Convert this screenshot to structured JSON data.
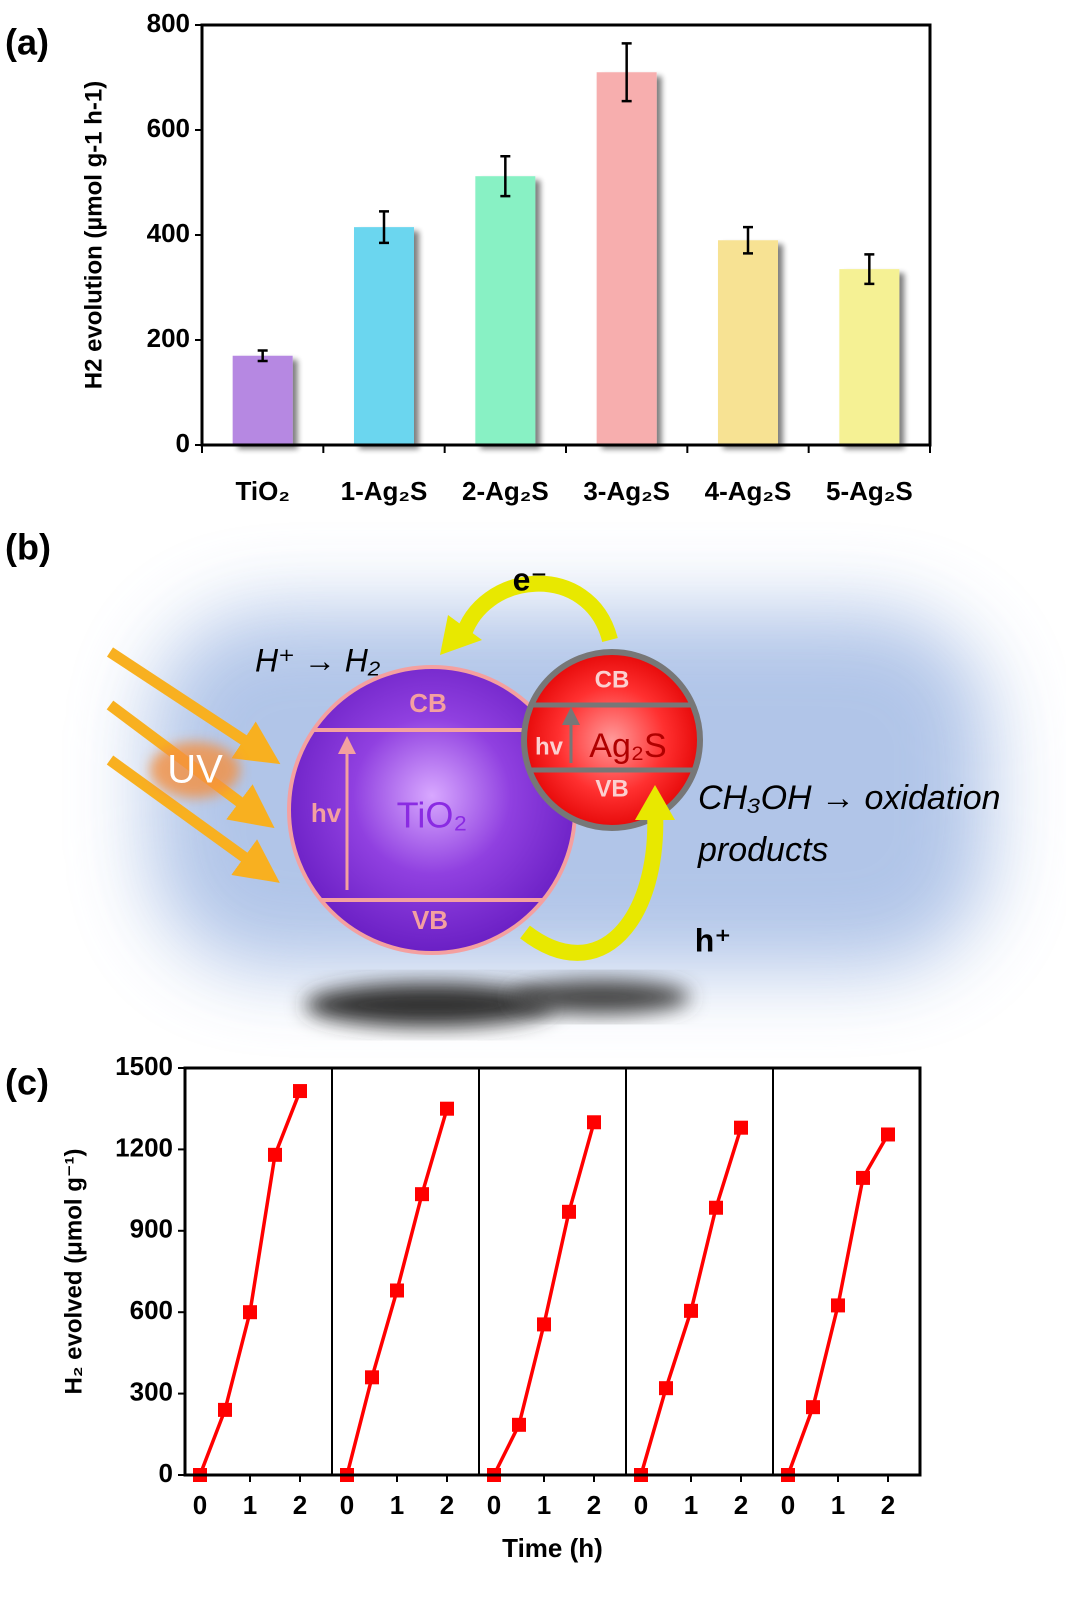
{
  "chart_data": [
    {
      "type": "bar",
      "label": "(a)",
      "y_label": "H2 evolution (µmol g-1 h-1)",
      "categories": [
        "TiO₂",
        "1-Ag₂S",
        "2-Ag₂S",
        "3-Ag₂S",
        "4-Ag₂S",
        "5-Ag₂S"
      ],
      "values": [
        170,
        415,
        512,
        710,
        390,
        335
      ],
      "errors": [
        10,
        30,
        38,
        55,
        25,
        28
      ],
      "colors": [
        "#b07ee0",
        "#5fd3ee",
        "#7ef0c0",
        "#f7a8a8",
        "#f7e08a",
        "#f5f08c"
      ],
      "ylim": [
        0,
        800
      ],
      "yticks": [
        0,
        200,
        400,
        600,
        800
      ],
      "grid": false
    },
    {
      "type": "line",
      "label": "(c)",
      "x_label": "Time (h)",
      "y_label": "H₂ evolved (μmol g⁻¹)",
      "x": [
        0,
        0.5,
        1,
        1.5,
        2
      ],
      "series": [
        {
          "color": "#ff0000",
          "values": [
            0,
            240,
            600,
            1180,
            1415
          ]
        },
        {
          "color": "#ff0000",
          "values": [
            0,
            360,
            680,
            1035,
            1350
          ]
        },
        {
          "color": "#ff0000",
          "values": [
            0,
            185,
            555,
            970,
            1300
          ]
        },
        {
          "color": "#ff0000",
          "values": [
            0,
            320,
            605,
            985,
            1280
          ]
        },
        {
          "color": "#ff0000",
          "values": [
            0,
            250,
            625,
            1095,
            1255
          ]
        }
      ],
      "xlim": [
        -0.3,
        2.64
      ],
      "xticks": [
        0,
        1,
        2
      ],
      "ylim": [
        0,
        1500
      ],
      "yticks": [
        0,
        300,
        600,
        900,
        1200,
        1500
      ],
      "facet": true,
      "grid": false
    }
  ],
  "diagram": {
    "label": "(b)",
    "electron": "e⁻",
    "hole": "h⁺",
    "reduction": "H⁺ → H₂",
    "light": "UV",
    "tio2": {
      "name": "TiO₂",
      "cb": "CB",
      "vb": "VB",
      "excitation": "hv"
    },
    "ag2s": {
      "name": "Ag₂S",
      "cb": "CB",
      "vb": "VB",
      "excitation": "hv"
    },
    "oxidation": [
      "CH₃OH → oxidation",
      "products"
    ]
  }
}
